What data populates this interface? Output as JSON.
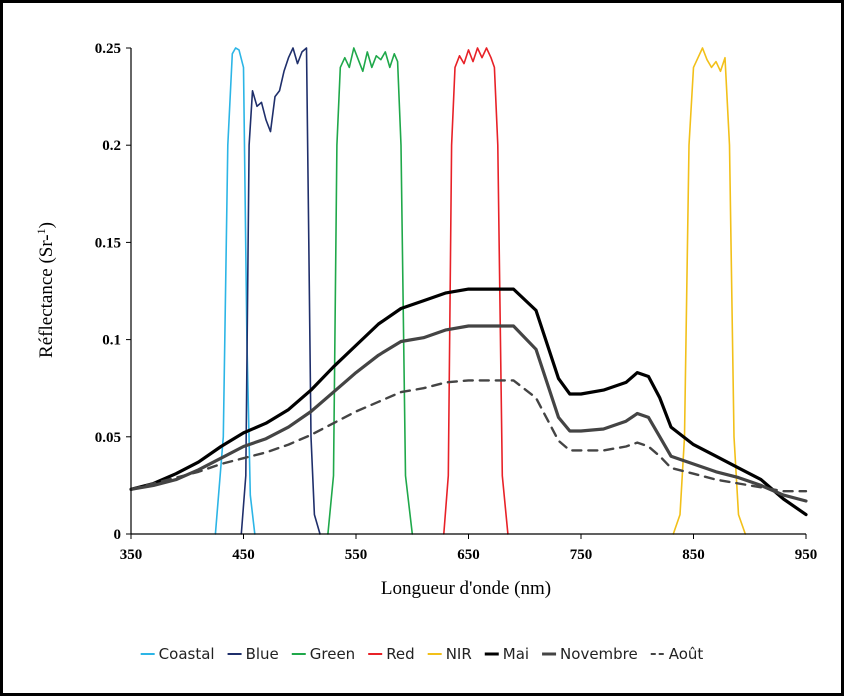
{
  "chart_data": {
    "type": "line",
    "title": "",
    "xlabel": "Longueur d'onde (nm)",
    "ylabel": "Réflectance (Sr-1)",
    "ylabel_main": "Réflectance (Sr-",
    "ylabel_sup": "1",
    "ylabel_end": ")",
    "xlim": [
      350,
      950
    ],
    "ylim": [
      0,
      0.25
    ],
    "x_ticks": [
      350,
      450,
      550,
      650,
      750,
      850,
      950
    ],
    "y_ticks": [
      0,
      0.05,
      0.1,
      0.15,
      0.2,
      0.25
    ],
    "y_tick_labels": [
      "0",
      "0.05",
      "0.1",
      "0.15",
      "0.2",
      "0.25"
    ],
    "grid": false,
    "legend_position": "bottom",
    "series": [
      {
        "name": "Coastal",
        "color": "#2cb5e6",
        "style": "solid",
        "width": 1.6,
        "x": [
          425,
          432,
          436,
          440,
          443,
          446,
          450,
          453,
          456,
          460
        ],
        "y": [
          0,
          0.05,
          0.2,
          0.247,
          0.25,
          0.249,
          0.24,
          0.1,
          0.02,
          0
        ]
      },
      {
        "name": "Blue",
        "color": "#1f2f6b",
        "style": "solid",
        "width": 1.6,
        "x": [
          448,
          452,
          455,
          458,
          462,
          466,
          470,
          474,
          478,
          482,
          486,
          490,
          494,
          498,
          502,
          506,
          508,
          510,
          513,
          518
        ],
        "y": [
          0,
          0.03,
          0.2,
          0.228,
          0.22,
          0.222,
          0.213,
          0.207,
          0.225,
          0.228,
          0.238,
          0.245,
          0.25,
          0.242,
          0.248,
          0.25,
          0.15,
          0.05,
          0.01,
          0
        ]
      },
      {
        "name": "Green",
        "color": "#1fa84a",
        "style": "solid",
        "width": 1.6,
        "x": [
          525,
          530,
          533,
          536,
          540,
          544,
          548,
          552,
          556,
          560,
          564,
          568,
          572,
          576,
          580,
          584,
          587,
          590,
          594,
          600
        ],
        "y": [
          0,
          0.03,
          0.2,
          0.24,
          0.245,
          0.24,
          0.25,
          0.244,
          0.238,
          0.248,
          0.24,
          0.246,
          0.244,
          0.248,
          0.24,
          0.247,
          0.243,
          0.2,
          0.03,
          0
        ]
      },
      {
        "name": "Red",
        "color": "#e82127",
        "style": "solid",
        "width": 1.6,
        "x": [
          628,
          632,
          635,
          638,
          642,
          646,
          650,
          654,
          658,
          662,
          666,
          670,
          673,
          676,
          680,
          685
        ],
        "y": [
          0,
          0.03,
          0.2,
          0.24,
          0.246,
          0.242,
          0.249,
          0.243,
          0.25,
          0.245,
          0.25,
          0.245,
          0.24,
          0.2,
          0.03,
          0
        ]
      },
      {
        "name": "NIR",
        "color": "#f2c019",
        "style": "solid",
        "width": 1.6,
        "x": [
          832,
          838,
          842,
          846,
          850,
          854,
          858,
          862,
          866,
          870,
          874,
          878,
          882,
          886,
          890,
          896
        ],
        "y": [
          0,
          0.01,
          0.05,
          0.2,
          0.24,
          0.245,
          0.25,
          0.244,
          0.24,
          0.243,
          0.238,
          0.245,
          0.2,
          0.05,
          0.01,
          0
        ]
      },
      {
        "name": "Mai",
        "color": "#000000",
        "style": "solid",
        "width": 3.2,
        "x": [
          350,
          370,
          390,
          410,
          430,
          450,
          470,
          490,
          510,
          530,
          550,
          570,
          590,
          610,
          630,
          650,
          670,
          690,
          710,
          730,
          740,
          750,
          770,
          790,
          800,
          810,
          820,
          830,
          850,
          870,
          890,
          910,
          930,
          950
        ],
        "y": [
          0.023,
          0.026,
          0.031,
          0.037,
          0.045,
          0.052,
          0.057,
          0.064,
          0.074,
          0.086,
          0.097,
          0.108,
          0.116,
          0.12,
          0.124,
          0.126,
          0.126,
          0.126,
          0.115,
          0.08,
          0.072,
          0.072,
          0.074,
          0.078,
          0.083,
          0.081,
          0.07,
          0.055,
          0.046,
          0.04,
          0.034,
          0.028,
          0.018,
          0.01
        ]
      },
      {
        "name": "Novembre",
        "color": "#444444",
        "style": "solid",
        "width": 3.2,
        "x": [
          350,
          370,
          390,
          410,
          430,
          450,
          470,
          490,
          510,
          530,
          550,
          570,
          590,
          610,
          630,
          650,
          670,
          690,
          710,
          730,
          740,
          750,
          770,
          790,
          800,
          810,
          820,
          830,
          850,
          870,
          890,
          910,
          930,
          950
        ],
        "y": [
          0.023,
          0.025,
          0.028,
          0.033,
          0.039,
          0.045,
          0.049,
          0.055,
          0.063,
          0.073,
          0.083,
          0.092,
          0.099,
          0.101,
          0.105,
          0.107,
          0.107,
          0.107,
          0.095,
          0.06,
          0.053,
          0.053,
          0.054,
          0.058,
          0.062,
          0.06,
          0.05,
          0.04,
          0.036,
          0.032,
          0.029,
          0.025,
          0.02,
          0.017
        ]
      },
      {
        "name": "Août",
        "color": "#444444",
        "style": "dashed",
        "width": 2.4,
        "x": [
          350,
          370,
          390,
          410,
          430,
          450,
          470,
          490,
          510,
          530,
          550,
          570,
          590,
          610,
          630,
          650,
          670,
          690,
          710,
          730,
          740,
          750,
          770,
          790,
          800,
          810,
          820,
          830,
          850,
          870,
          890,
          910,
          930,
          950
        ],
        "y": [
          0.023,
          0.026,
          0.029,
          0.032,
          0.036,
          0.039,
          0.042,
          0.046,
          0.051,
          0.057,
          0.063,
          0.068,
          0.073,
          0.075,
          0.078,
          0.079,
          0.079,
          0.079,
          0.07,
          0.048,
          0.043,
          0.043,
          0.043,
          0.045,
          0.047,
          0.045,
          0.04,
          0.034,
          0.031,
          0.028,
          0.026,
          0.024,
          0.022,
          0.022
        ]
      }
    ]
  }
}
